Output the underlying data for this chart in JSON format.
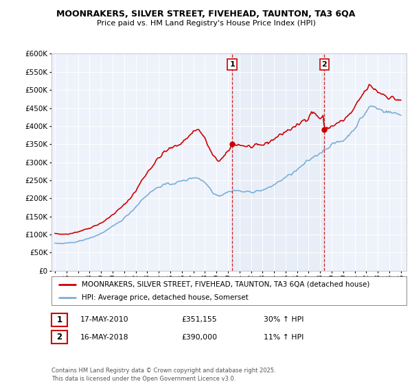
{
  "title": "MOONRAKERS, SILVER STREET, FIVEHEAD, TAUNTON, TA3 6QA",
  "subtitle": "Price paid vs. HM Land Registry's House Price Index (HPI)",
  "red_label": "MOONRAKERS, SILVER STREET, FIVEHEAD, TAUNTON, TA3 6QA (detached house)",
  "blue_label": "HPI: Average price, detached house, Somerset",
  "footnote": "Contains HM Land Registry data © Crown copyright and database right 2025.\nThis data is licensed under the Open Government Licence v3.0.",
  "sale1": {
    "num": "1",
    "date": "17-MAY-2010",
    "price": "£351,155",
    "change": "30% ↑ HPI"
  },
  "sale2": {
    "num": "2",
    "date": "16-MAY-2018",
    "price": "£390,000",
    "change": "11% ↑ HPI"
  },
  "vline1_x": 2010.37,
  "vline2_x": 2018.37,
  "sale1_y": 351155,
  "sale2_y": 390000,
  "ylim": [
    0,
    600000
  ],
  "xlim": [
    1994.7,
    2025.5
  ],
  "background_color": "#ffffff",
  "plot_bg": "#eef2fb",
  "red_color": "#cc0000",
  "blue_color": "#7aaed6",
  "vline_color": "#cc0000",
  "shade_color": "#dce8f5",
  "grid_color": "#cccccc",
  "title_fontsize": 9.0,
  "subtitle_fontsize": 8.0,
  "tick_fontsize": 7.0,
  "ytick_fontsize": 7.5,
  "legend_fontsize": 7.5,
  "footnote_fontsize": 6.0
}
